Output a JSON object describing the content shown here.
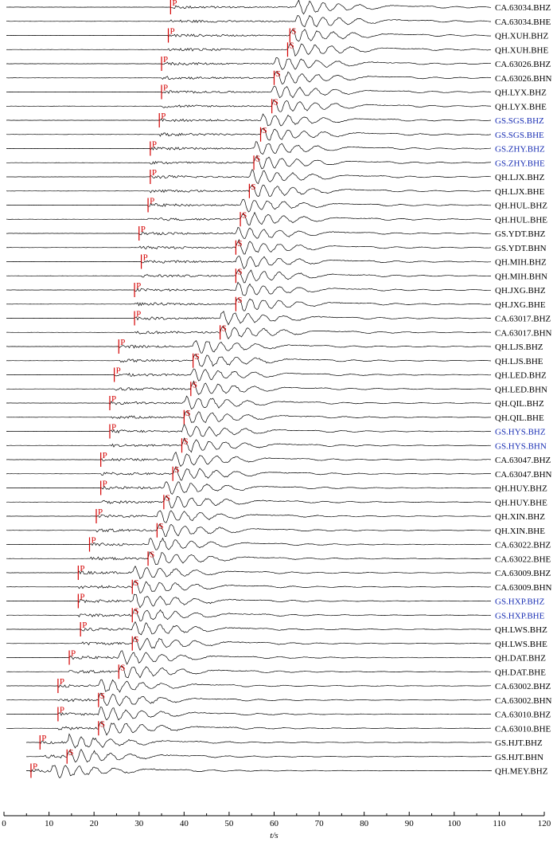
{
  "chart_data": {
    "type": "line",
    "title": "",
    "xlabel": "t/s",
    "ylabel": "",
    "xlim": [
      0,
      120
    ],
    "x_ticks": [
      0,
      10,
      20,
      30,
      40,
      50,
      60,
      70,
      80,
      90,
      100,
      110,
      120
    ],
    "grid": false,
    "colors": {
      "trace": "#000000",
      "pick": "#d40000",
      "label_default": "#000000",
      "label_highlight": "#1a2fb4"
    },
    "phase_labels": {
      "p": "P",
      "s": "S"
    },
    "stations": [
      {
        "name": "CA.63034.BHZ",
        "highlight": false,
        "p": 37.0,
        "s": null
      },
      {
        "name": "CA.63034.BHE",
        "highlight": false,
        "p": null,
        "s": null
      },
      {
        "name": "QH.XUH.BHZ",
        "highlight": false,
        "p": 36.5,
        "s": 63.5
      },
      {
        "name": "QH.XUH.BHE",
        "highlight": false,
        "p": null,
        "s": 63.0
      },
      {
        "name": "CA.63026.BHZ",
        "highlight": false,
        "p": 35.0,
        "s": null
      },
      {
        "name": "CA.63026.BHN",
        "highlight": false,
        "p": null,
        "s": 60.0
      },
      {
        "name": "QH.LYX.BHZ",
        "highlight": false,
        "p": 35.0,
        "s": null
      },
      {
        "name": "QH.LYX.BHE",
        "highlight": false,
        "p": null,
        "s": 59.5
      },
      {
        "name": "GS.SGS.BHZ",
        "highlight": true,
        "p": 34.5,
        "s": null
      },
      {
        "name": "GS.SGS.BHE",
        "highlight": true,
        "p": null,
        "s": 57.0
      },
      {
        "name": "GS.ZHY.BHZ",
        "highlight": true,
        "p": 32.5,
        "s": null
      },
      {
        "name": "GS.ZHY.BHE",
        "highlight": true,
        "p": null,
        "s": 55.5
      },
      {
        "name": "QH.LJX.BHZ",
        "highlight": false,
        "p": 32.5,
        "s": null
      },
      {
        "name": "QH.LJX.BHE",
        "highlight": false,
        "p": null,
        "s": 54.5
      },
      {
        "name": "QH.HUL.BHZ",
        "highlight": false,
        "p": 32.0,
        "s": null
      },
      {
        "name": "QH.HUL.BHE",
        "highlight": false,
        "p": null,
        "s": 52.5
      },
      {
        "name": "GS.YDT.BHZ",
        "highlight": false,
        "p": 30.0,
        "s": null
      },
      {
        "name": "GS.YDT.BHN",
        "highlight": false,
        "p": null,
        "s": 51.5
      },
      {
        "name": "QH.MIH.BHZ",
        "highlight": false,
        "p": 30.5,
        "s": null
      },
      {
        "name": "QH.MIH.BHN",
        "highlight": false,
        "p": null,
        "s": 51.5
      },
      {
        "name": "QH.JXG.BHZ",
        "highlight": false,
        "p": 29.0,
        "s": null
      },
      {
        "name": "QH.JXG.BHE",
        "highlight": false,
        "p": null,
        "s": 51.5
      },
      {
        "name": "CA.63017.BHZ",
        "highlight": false,
        "p": 29.0,
        "s": null
      },
      {
        "name": "CA.63017.BHN",
        "highlight": false,
        "p": null,
        "s": 48.0
      },
      {
        "name": "QH.LJS.BHZ",
        "highlight": false,
        "p": 25.5,
        "s": null
      },
      {
        "name": "QH.LJS.BHE",
        "highlight": false,
        "p": null,
        "s": 42.0
      },
      {
        "name": "QH.LED.BHZ",
        "highlight": false,
        "p": 24.5,
        "s": null
      },
      {
        "name": "QH.LED.BHN",
        "highlight": false,
        "p": null,
        "s": 41.5
      },
      {
        "name": "QH.QIL.BHZ",
        "highlight": false,
        "p": 23.5,
        "s": null
      },
      {
        "name": "QH.QIL.BHE",
        "highlight": false,
        "p": null,
        "s": 40.0
      },
      {
        "name": "GS.HYS.BHZ",
        "highlight": true,
        "p": 23.5,
        "s": null
      },
      {
        "name": "GS.HYS.BHN",
        "highlight": true,
        "p": null,
        "s": 39.5
      },
      {
        "name": "CA.63047.BHZ",
        "highlight": false,
        "p": 21.5,
        "s": null
      },
      {
        "name": "CA.63047.BHN",
        "highlight": false,
        "p": null,
        "s": 37.5
      },
      {
        "name": "QH.HUY.BHZ",
        "highlight": false,
        "p": 21.5,
        "s": null
      },
      {
        "name": "QH.HUY.BHE",
        "highlight": false,
        "p": null,
        "s": 35.5
      },
      {
        "name": "QH.XIN.BHZ",
        "highlight": false,
        "p": 20.5,
        "s": null
      },
      {
        "name": "QH.XIN.BHE",
        "highlight": false,
        "p": null,
        "s": 34.0
      },
      {
        "name": "CA.63022.BHZ",
        "highlight": false,
        "p": 19.0,
        "s": null
      },
      {
        "name": "CA.63022.BHE",
        "highlight": false,
        "p": null,
        "s": 32.0
      },
      {
        "name": "CA.63009.BHZ",
        "highlight": false,
        "p": 16.5,
        "s": null
      },
      {
        "name": "CA.63009.BHN",
        "highlight": false,
        "p": null,
        "s": 28.5
      },
      {
        "name": "GS.HXP.BHZ",
        "highlight": true,
        "p": 16.5,
        "s": null
      },
      {
        "name": "GS.HXP.BHE",
        "highlight": true,
        "p": null,
        "s": 28.5
      },
      {
        "name": "QH.LWS.BHZ",
        "highlight": false,
        "p": 17.0,
        "s": null
      },
      {
        "name": "QH.LWS.BHE",
        "highlight": false,
        "p": null,
        "s": 28.5
      },
      {
        "name": "QH.DAT.BHZ",
        "highlight": false,
        "p": 14.5,
        "s": null
      },
      {
        "name": "QH.DAT.BHE",
        "highlight": false,
        "p": null,
        "s": 25.5
      },
      {
        "name": "CA.63002.BHZ",
        "highlight": false,
        "p": 12.0,
        "s": null
      },
      {
        "name": "CA.63002.BHN",
        "highlight": false,
        "p": null,
        "s": 21.0
      },
      {
        "name": "CA.63010.BHZ",
        "highlight": false,
        "p": 12.0,
        "s": null
      },
      {
        "name": "CA.63010.BHE",
        "highlight": false,
        "p": null,
        "s": 21.0
      },
      {
        "name": "GS.HJT.BHZ",
        "highlight": false,
        "p": 8.0,
        "s": null
      },
      {
        "name": "GS.HJT.BHN",
        "highlight": false,
        "p": null,
        "s": 14.0
      },
      {
        "name": "QH.MEY.BHZ",
        "highlight": false,
        "p": 6.0,
        "s": null
      }
    ]
  }
}
